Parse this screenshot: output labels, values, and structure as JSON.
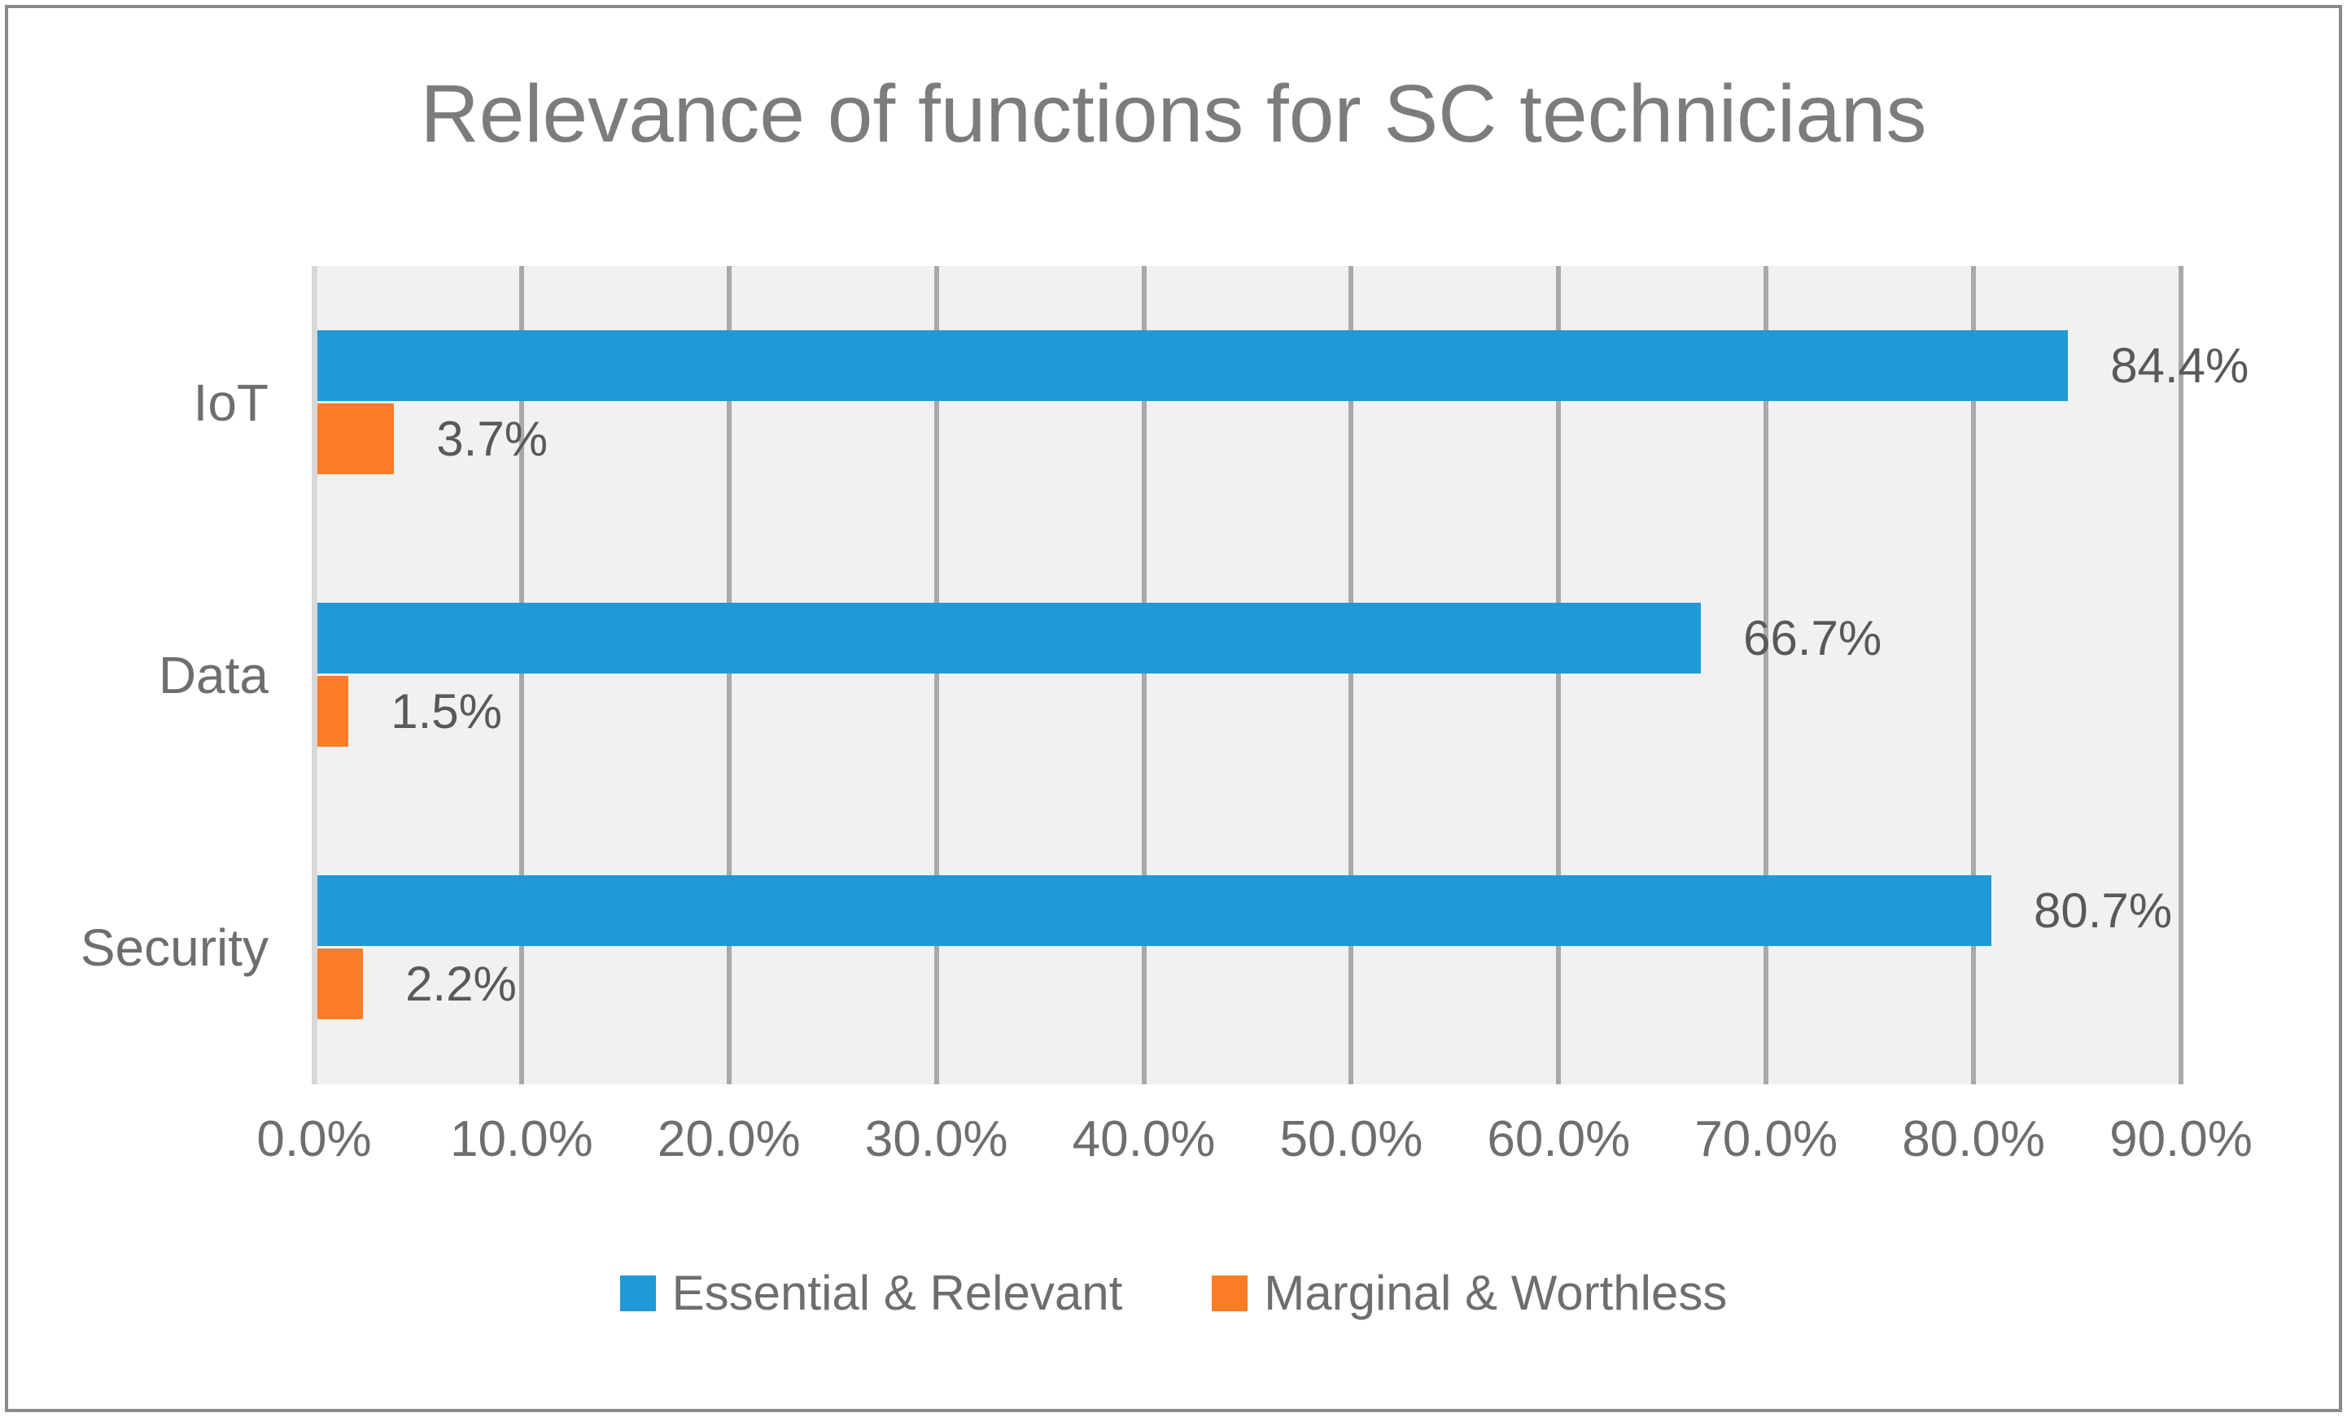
{
  "chart_data": {
    "type": "bar",
    "orientation": "horizontal",
    "title": "Relevance of functions for SC technicians",
    "categories": [
      "IoT",
      "Data",
      "Security"
    ],
    "series": [
      {
        "name": "Essential & Relevant",
        "color": "#1f9ad7",
        "values": [
          84.4,
          66.7,
          80.7
        ],
        "data_labels": [
          "84.4%",
          "66.7%",
          "80.7%"
        ]
      },
      {
        "name": "Marginal & Worthless",
        "color": "#fb7d26",
        "values": [
          3.7,
          1.5,
          2.2
        ],
        "data_labels": [
          "3.7%",
          "1.5%",
          "2.2%"
        ]
      }
    ],
    "xlim": [
      0,
      90
    ],
    "x_tick_labels": [
      "0.0%",
      "10.0%",
      "20.0%",
      "30.0%",
      "40.0%",
      "50.0%",
      "60.0%",
      "70.0%",
      "80.0%",
      "90.0%"
    ],
    "grid": "vertical-only",
    "legend_position": "bottom-center",
    "plot_background_color": "#f1f1f1",
    "gridline_color": "#a9a9a9",
    "zero_line_color": "#d8d8d8",
    "title_color": "#7c7c7c",
    "axis_label_color": "#6e6e6e",
    "data_label_color": "#595959",
    "border_color": "#8a8a8a"
  }
}
